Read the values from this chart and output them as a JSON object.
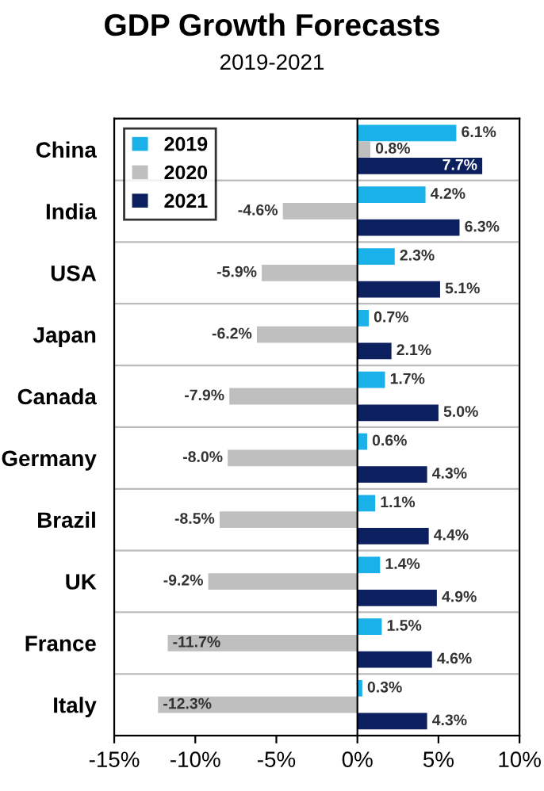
{
  "chart_data": {
    "type": "bar",
    "orientation": "horizontal",
    "title": "GDP Growth Forecasts",
    "subtitle": "2019-2021",
    "categories": [
      "China",
      "India",
      "USA",
      "Japan",
      "Canada",
      "Germany",
      "Brazil",
      "UK",
      "France",
      "Italy"
    ],
    "series": [
      {
        "name": "2019",
        "color": "#1ab0e8",
        "values": [
          6.1,
          4.2,
          2.3,
          0.7,
          1.7,
          0.6,
          1.1,
          1.4,
          1.5,
          0.3
        ],
        "value_labels": [
          "6.1%",
          "4.2%",
          "2.3%",
          "0.7%",
          "1.7%",
          "0.6%",
          "1.1%",
          "1.4%",
          "1.5%",
          "0.3%"
        ]
      },
      {
        "name": "2020",
        "color": "#bfbfbf",
        "values": [
          0.8,
          -4.6,
          -5.9,
          -6.2,
          -7.9,
          -8.0,
          -8.5,
          -9.2,
          -11.7,
          -12.3
        ],
        "value_labels": [
          "0.8%",
          "-4.6%",
          "-5.9%",
          "-6.2%",
          "-7.9%",
          "-8.0%",
          "-8.5%",
          "-9.2%",
          "-11.7%",
          "-12.3%"
        ]
      },
      {
        "name": "2021",
        "color": "#0c1f5e",
        "values": [
          7.7,
          6.3,
          5.1,
          2.1,
          5.0,
          4.3,
          4.4,
          4.9,
          4.6,
          4.3
        ],
        "value_labels": [
          "7.7%",
          "6.3%",
          "5.1%",
          "2.1%",
          "5.0%",
          "4.3%",
          "4.4%",
          "4.9%",
          "4.6%",
          "4.3%"
        ]
      }
    ],
    "xlim": [
      -15,
      10
    ],
    "xticks": [
      {
        "value": -15,
        "label": "-15%"
      },
      {
        "value": -10,
        "label": "-10%"
      },
      {
        "value": -5,
        "label": "-5%"
      },
      {
        "value": 0,
        "label": "0%"
      },
      {
        "value": 5,
        "label": "5%"
      },
      {
        "value": 10,
        "label": "10%"
      }
    ],
    "grid": "y",
    "legend": "top left"
  }
}
